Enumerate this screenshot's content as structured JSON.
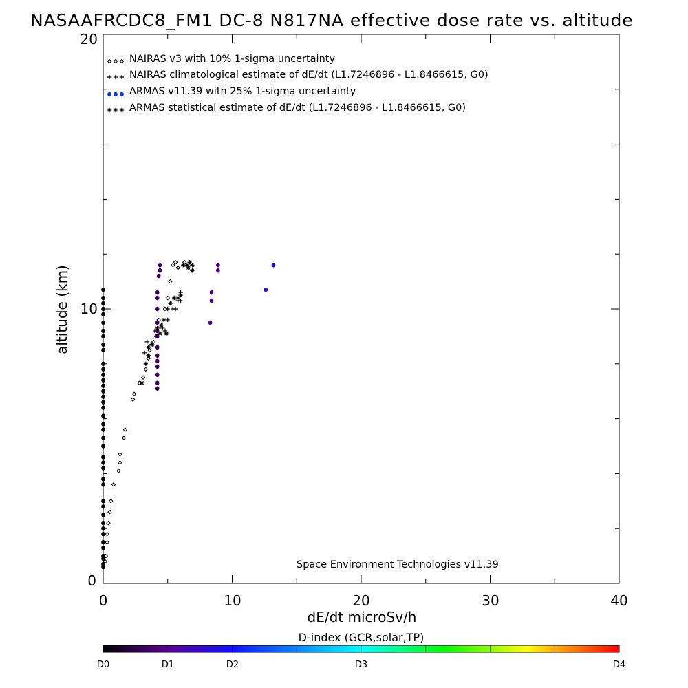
{
  "chart_data": {
    "type": "scatter",
    "title": "NASAAFRCDC8_FM1 DC-8   N817NA effective dose rate vs. altitude",
    "xlabel": "dE/dt microSv/h",
    "ylabel": "altitude (km)",
    "xlim": [
      0,
      40
    ],
    "ylim": [
      0,
      20
    ],
    "x_ticks": [
      "0",
      "10",
      "20",
      "30",
      "40"
    ],
    "y_ticks": [
      "0",
      "10",
      "20"
    ],
    "grid": false,
    "legend_position": "top-left",
    "legend": [
      {
        "marker": "diamond",
        "label": "NAIRAS v3 with 10% 1-sigma uncertainty"
      },
      {
        "marker": "plus",
        "label": "NAIRAS climatological estimate of dE/dt (L1.7246896 - L1.8466615, G0)"
      },
      {
        "marker": "dot",
        "label": "ARMAS v11.39 with 25% 1-sigma uncertainty"
      },
      {
        "marker": "asterisk",
        "label": "ARMAS statistical estimate of dE/dt (L1.7246896 - L1.8466615, G0)"
      }
    ],
    "annotation": "Space Environment Technologies v11.39",
    "colorbar": {
      "title": "D-index (GCR,solar,TP)",
      "labels": [
        {
          "text": "D0",
          "pos": 0.0
        },
        {
          "text": "D1",
          "pos": 0.125
        },
        {
          "text": "D2",
          "pos": 0.25
        },
        {
          "text": "D3",
          "pos": 0.5
        },
        {
          "text": "D4",
          "pos": 1.0
        }
      ],
      "colors": [
        "#000000",
        "#5a0090",
        "#1010ff",
        "#00ffff",
        "#00ff00",
        "#ffff00",
        "#ff0000"
      ]
    },
    "series": [
      {
        "name": "NAIRAS v3",
        "marker": "diamond",
        "color": "#000000",
        "points": [
          [
            0.15,
            0.8
          ],
          [
            0.2,
            1.0
          ],
          [
            0.3,
            1.5
          ],
          [
            0.3,
            1.8
          ],
          [
            0.4,
            2.2
          ],
          [
            0.5,
            2.6
          ],
          [
            0.6,
            3.0
          ],
          [
            0.8,
            3.6
          ],
          [
            1.2,
            4.1
          ],
          [
            1.3,
            4.4
          ],
          [
            1.3,
            4.7
          ],
          [
            1.6,
            5.3
          ],
          [
            1.7,
            5.6
          ],
          [
            2.3,
            6.7
          ],
          [
            2.4,
            6.9
          ],
          [
            2.8,
            7.3
          ],
          [
            3.1,
            7.5
          ],
          [
            3.3,
            7.8
          ],
          [
            3.5,
            8.2
          ],
          [
            3.6,
            8.5
          ],
          [
            3.9,
            8.8
          ],
          [
            4.1,
            9.0
          ],
          [
            4.3,
            9.6
          ],
          [
            4.8,
            10.0
          ],
          [
            5.0,
            10.4
          ],
          [
            5.2,
            11.0
          ],
          [
            5.4,
            11.6
          ],
          [
            5.6,
            11.7
          ],
          [
            5.8,
            11.5
          ],
          [
            6.3,
            11.7
          ]
        ]
      },
      {
        "name": "NAIRAS climatological estimate",
        "marker": "plus",
        "color": "#000000",
        "points": [
          [
            3.2,
            8.4
          ],
          [
            3.4,
            8.8
          ],
          [
            3.7,
            8.7
          ],
          [
            4.0,
            9.2
          ],
          [
            4.6,
            9.3
          ],
          [
            4.8,
            9.2
          ],
          [
            5.0,
            9.6
          ],
          [
            5.0,
            10.0
          ],
          [
            5.4,
            10.0
          ],
          [
            5.6,
            10.0
          ],
          [
            5.8,
            10.3
          ],
          [
            6.0,
            10.3
          ],
          [
            6.0,
            10.6
          ]
        ]
      },
      {
        "name": "ARMAS v11.39",
        "marker": "dot",
        "color_scale": "d-index",
        "points": [
          [
            0,
            0.6
          ],
          [
            0,
            0.7
          ],
          [
            0,
            0.9
          ],
          [
            0,
            1.0
          ],
          [
            0,
            1.3
          ],
          [
            0,
            1.5
          ],
          [
            0,
            1.8
          ],
          [
            0,
            2.0
          ],
          [
            0,
            2.2
          ],
          [
            0,
            2.5
          ],
          [
            0,
            2.8
          ],
          [
            0,
            3.0
          ],
          [
            0,
            3.6
          ],
          [
            0,
            3.8
          ],
          [
            0,
            4.2
          ],
          [
            0,
            4.4
          ],
          [
            0,
            4.6
          ],
          [
            0,
            5.0
          ],
          [
            0,
            5.3
          ],
          [
            0,
            5.6
          ],
          [
            0,
            5.8
          ],
          [
            0,
            6.1
          ],
          [
            0,
            6.4
          ],
          [
            0,
            6.6
          ],
          [
            0,
            6.8
          ],
          [
            0,
            7.0
          ],
          [
            0,
            7.2
          ],
          [
            0,
            7.4
          ],
          [
            0,
            7.6
          ],
          [
            0,
            7.8
          ],
          [
            0,
            8.0
          ],
          [
            0,
            8.5
          ],
          [
            0,
            8.7
          ],
          [
            0,
            9.0
          ],
          [
            0,
            9.2
          ],
          [
            0,
            9.5
          ],
          [
            0,
            9.8
          ],
          [
            0,
            10.0
          ],
          [
            0,
            10.2
          ],
          [
            0,
            10.4
          ],
          [
            0,
            10.7
          ],
          [
            4.2,
            7.1
          ],
          [
            4.2,
            7.3
          ],
          [
            4.2,
            7.6
          ],
          [
            4.2,
            7.9
          ],
          [
            4.2,
            8.1
          ],
          [
            4.2,
            8.3
          ],
          [
            4.2,
            8.6
          ],
          [
            4.2,
            9.0
          ],
          [
            4.2,
            9.2
          ],
          [
            4.2,
            9.5
          ],
          [
            4.2,
            10.0
          ],
          [
            4.2,
            10.4
          ],
          [
            4.2,
            10.6
          ],
          [
            4.3,
            11.2
          ],
          [
            4.4,
            11.4
          ],
          [
            4.4,
            11.6
          ],
          [
            8.3,
            9.5
          ],
          [
            8.4,
            10.3
          ],
          [
            8.4,
            10.6
          ],
          [
            8.9,
            11.4
          ],
          [
            8.9,
            11.6
          ],
          [
            12.6,
            10.7
          ],
          [
            13.2,
            11.6
          ]
        ]
      },
      {
        "name": "ARMAS statistical estimate",
        "marker": "asterisk",
        "color": "#000000",
        "points": [
          [
            3.0,
            7.3
          ],
          [
            3.3,
            8.0
          ],
          [
            3.5,
            8.3
          ],
          [
            3.5,
            8.6
          ],
          [
            3.8,
            8.7
          ],
          [
            4.2,
            9.3
          ],
          [
            4.4,
            9.1
          ],
          [
            4.5,
            9.4
          ],
          [
            4.7,
            9.6
          ],
          [
            4.9,
            9.1
          ],
          [
            5.2,
            10.2
          ],
          [
            5.5,
            10.4
          ],
          [
            5.8,
            10.4
          ],
          [
            6.0,
            10.5
          ],
          [
            6.2,
            11.6
          ],
          [
            6.5,
            11.6
          ],
          [
            6.6,
            11.5
          ],
          [
            6.7,
            11.7
          ],
          [
            6.9,
            11.6
          ],
          [
            6.9,
            11.4
          ]
        ]
      }
    ]
  }
}
